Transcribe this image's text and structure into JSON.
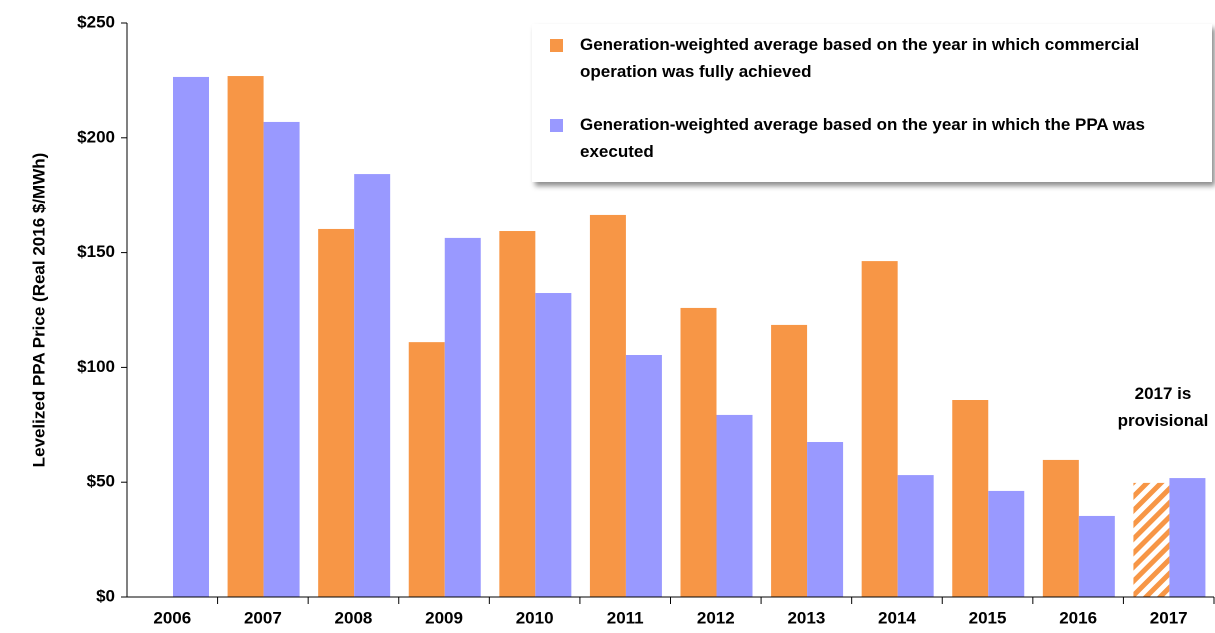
{
  "chart_data": {
    "type": "bar",
    "y_axis_label": "Levelized  PPA Price (Real 2016 $/MWh)",
    "categories": [
      "2006",
      "2007",
      "2008",
      "2009",
      "2010",
      "2011",
      "2012",
      "2013",
      "2014",
      "2015",
      "2016",
      "2017"
    ],
    "series": [
      {
        "name": "Generation-weighted average based on the year in which commercial operation was fully achieved",
        "color": "#f79646",
        "hatched": [
          11
        ],
        "values": [
          null,
          226.9,
          160.3,
          111,
          159.4,
          166.4,
          125.9,
          118.5,
          146.3,
          85.8,
          59.7,
          49.7
        ]
      },
      {
        "name": "Generation-weighted average based on the year in which the PPA was executed",
        "color": "#9999ff",
        "values": [
          226.5,
          206.9,
          184.2,
          156.4,
          132.4,
          105.4,
          79.3,
          67.5,
          53.1,
          46.2,
          35.3,
          51.8
        ]
      }
    ],
    "ylim": [
      0,
      250
    ],
    "yticks": [
      {
        "value": 0,
        "label": "$0"
      },
      {
        "value": 50,
        "label": "$50"
      },
      {
        "value": 100,
        "label": "$100"
      },
      {
        "value": 150,
        "label": "$150"
      },
      {
        "value": 200,
        "label": "$200"
      },
      {
        "value": 250,
        "label": "$250"
      }
    ],
    "annotation": "2017 is provisional"
  }
}
